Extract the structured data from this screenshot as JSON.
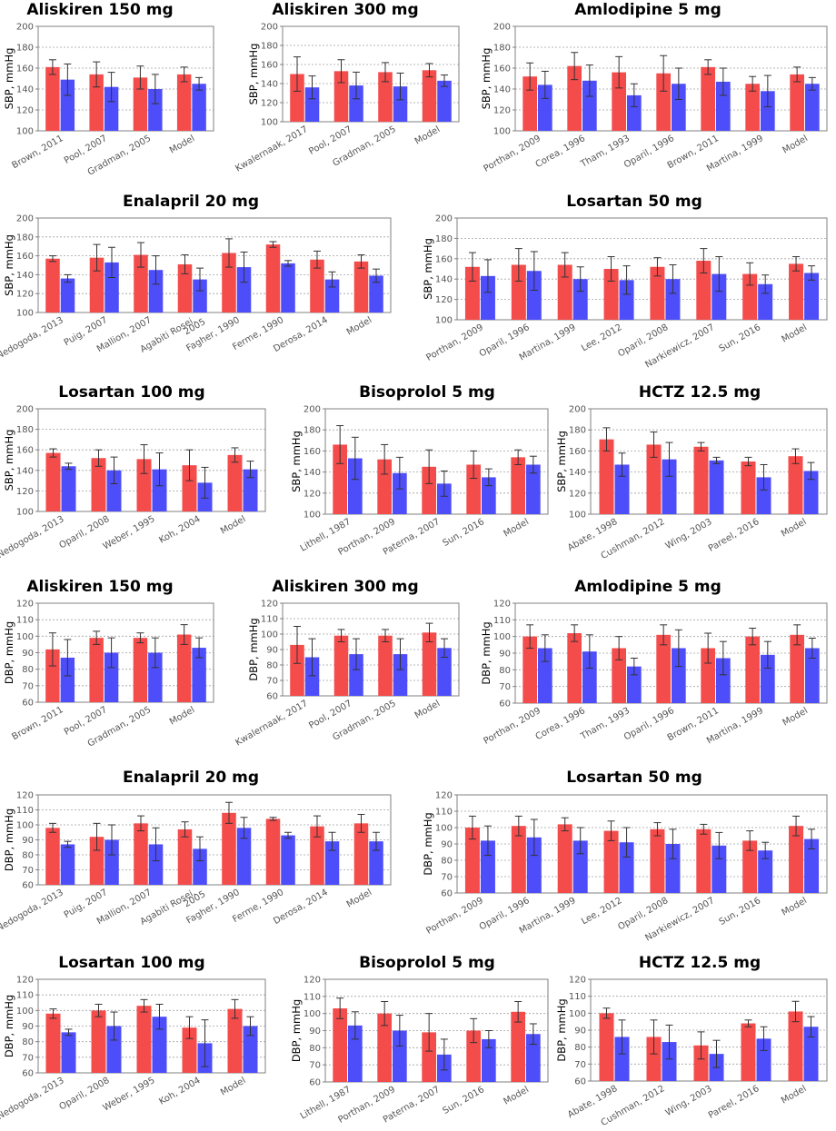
{
  "colors": {
    "treated": "#f44b4b",
    "control": "#4d4dfa",
    "axis": "#808080",
    "grid": "#a0a0a0"
  },
  "chart_data": [
    {
      "type": "bar",
      "title": "Aliskiren 150 mg",
      "ylabel": "SBP, mmHg",
      "ylim": [
        100,
        200
      ],
      "ticks": [
        100,
        120,
        140,
        160,
        180,
        200
      ],
      "categories": [
        "Brown, 2011",
        "Pool, 2007",
        "Gradman, 2005",
        "Model"
      ],
      "series": [
        {
          "name": "red",
          "values": [
            161,
            154,
            151,
            154
          ],
          "err": [
            7,
            12,
            11,
            7
          ]
        },
        {
          "name": "blue",
          "values": [
            149,
            142,
            140,
            145
          ],
          "err": [
            15,
            14,
            14,
            6
          ]
        }
      ]
    },
    {
      "type": "bar",
      "title": "Aliskiren 300 mg",
      "ylabel": "SBP, mmHg",
      "ylim": [
        100,
        200
      ],
      "ticks": [
        100,
        120,
        140,
        160,
        180,
        200
      ],
      "categories": [
        "Kwalernaak, 2017",
        "Pool, 2007",
        "Gradman, 2005",
        "Model"
      ],
      "series": [
        {
          "name": "red",
          "values": [
            150,
            153,
            152,
            154
          ],
          "err": [
            18,
            12,
            10,
            7
          ]
        },
        {
          "name": "blue",
          "values": [
            136,
            138,
            137,
            143
          ],
          "err": [
            12,
            14,
            14,
            6
          ]
        }
      ]
    },
    {
      "type": "bar",
      "title": "Amlodipine 5 mg",
      "ylabel": "SBP, mmHg",
      "ylim": [
        100,
        200
      ],
      "ticks": [
        100,
        120,
        140,
        160,
        180,
        200
      ],
      "categories": [
        "Porthan, 2009",
        "Corea, 1996",
        "Tham, 1993",
        "Oparil, 1996",
        "Brown, 2011",
        "Martina, 1999",
        "Model"
      ],
      "series": [
        {
          "name": "red",
          "values": [
            152,
            162,
            156,
            155,
            161,
            145,
            154
          ],
          "err": [
            13,
            13,
            15,
            17,
            7,
            7,
            7
          ]
        },
        {
          "name": "blue",
          "values": [
            144,
            148,
            134,
            145,
            147,
            138,
            145
          ],
          "err": [
            13,
            15,
            11,
            15,
            13,
            15,
            6
          ]
        }
      ]
    },
    {
      "type": "bar",
      "title": "Enalapril 20 mg",
      "ylabel": "SBP, mmHg",
      "ylim": [
        100,
        200
      ],
      "ticks": [
        100,
        120,
        140,
        160,
        180,
        200
      ],
      "categories": [
        "Nedogoda, 2013",
        "Puig, 2007",
        "Mallion, 2007",
        "Agabiti Rosei, 2005",
        "Fagher, 1990",
        "Ferme, 1990",
        "Derosa, 2014",
        "Model"
      ],
      "series": [
        {
          "name": "red",
          "values": [
            157,
            158,
            161,
            151,
            163,
            172,
            156,
            154
          ],
          "err": [
            3,
            14,
            13,
            10,
            15,
            3,
            9,
            7
          ]
        },
        {
          "name": "blue",
          "values": [
            136,
            153,
            145,
            135,
            148,
            152,
            135,
            139
          ],
          "err": [
            4,
            16,
            15,
            12,
            16,
            3,
            8,
            7
          ]
        }
      ]
    },
    {
      "type": "bar",
      "title": "Losartan 50 mg",
      "ylabel": "SBP, mmHg",
      "ylim": [
        100,
        200
      ],
      "ticks": [
        100,
        120,
        140,
        160,
        180,
        200
      ],
      "categories": [
        "Porthan, 2009",
        "Oparil, 1996",
        "Martina, 1999",
        "Lee, 2012",
        "Oparil, 2008",
        "Narkiewicz, 2007",
        "Sun, 2016",
        "Model"
      ],
      "series": [
        {
          "name": "red",
          "values": [
            152,
            154,
            154,
            150,
            152,
            158,
            145,
            155
          ],
          "err": [
            14,
            16,
            12,
            12,
            9,
            12,
            11,
            7
          ]
        },
        {
          "name": "blue",
          "values": [
            143,
            148,
            140,
            139,
            140,
            145,
            135,
            146
          ],
          "err": [
            16,
            19,
            12,
            14,
            14,
            17,
            9,
            7
          ]
        }
      ]
    },
    {
      "type": "bar",
      "title": "Losartan 100 mg",
      "ylabel": "SBP, mmHg",
      "ylim": [
        100,
        200
      ],
      "ticks": [
        100,
        120,
        140,
        160,
        180,
        200
      ],
      "categories": [
        "Nedogoda, 2013",
        "Oparil, 2008",
        "Weber, 1995",
        "Koh, 2004",
        "Model"
      ],
      "series": [
        {
          "name": "red",
          "values": [
            157,
            152,
            151,
            145,
            155
          ],
          "err": [
            4,
            8,
            14,
            15,
            7
          ]
        },
        {
          "name": "blue",
          "values": [
            144,
            140,
            141,
            128,
            141
          ],
          "err": [
            3,
            13,
            16,
            15,
            8
          ]
        }
      ]
    },
    {
      "type": "bar",
      "title": "Bisoprolol 5 mg",
      "ylabel": "SBP, mmHg",
      "ylim": [
        100,
        200
      ],
      "ticks": [
        100,
        120,
        140,
        160,
        180,
        200
      ],
      "categories": [
        "Lithell, 1987",
        "Porthan, 2009",
        "Paterna, 2007",
        "Sun, 2016",
        "Model"
      ],
      "series": [
        {
          "name": "red",
          "values": [
            166,
            152,
            145,
            147,
            154
          ],
          "err": [
            18,
            14,
            16,
            13,
            7
          ]
        },
        {
          "name": "blue",
          "values": [
            153,
            139,
            129,
            135,
            147
          ],
          "err": [
            20,
            15,
            12,
            8,
            8
          ]
        }
      ]
    },
    {
      "type": "bar",
      "title": "HCTZ 12.5 mg",
      "ylabel": "SBP, mmHg",
      "ylim": [
        100,
        200
      ],
      "ticks": [
        100,
        120,
        140,
        160,
        180,
        200
      ],
      "categories": [
        "Abate, 1998",
        "Cushman, 2012",
        "Wing, 2003",
        "Pareel, 2016",
        "Model"
      ],
      "series": [
        {
          "name": "red",
          "values": [
            171,
            166,
            164,
            150,
            155
          ],
          "err": [
            11,
            12,
            4,
            4,
            7
          ]
        },
        {
          "name": "blue",
          "values": [
            147,
            152,
            151,
            135,
            141
          ],
          "err": [
            11,
            16,
            3,
            12,
            8
          ]
        }
      ]
    },
    {
      "type": "bar",
      "title": "Aliskiren 150 mg",
      "ylabel": "DBP, mmHg",
      "ylim": [
        60,
        120
      ],
      "ticks": [
        60,
        70,
        80,
        90,
        100,
        110,
        120
      ],
      "categories": [
        "Brown, 2011",
        "Pool, 2007",
        "Gradman, 2005",
        "Model"
      ],
      "series": [
        {
          "name": "red",
          "values": [
            92,
            99,
            99,
            101
          ],
          "err": [
            10,
            4,
            3,
            6
          ]
        },
        {
          "name": "blue",
          "values": [
            87,
            90,
            90,
            93
          ],
          "err": [
            11,
            9,
            9,
            6
          ]
        }
      ]
    },
    {
      "type": "bar",
      "title": "Aliskiren 300 mg",
      "ylabel": "DBP, mmHg",
      "ylim": [
        60,
        120
      ],
      "ticks": [
        60,
        70,
        80,
        90,
        100,
        110,
        120
      ],
      "categories": [
        "Kwalernaak, 2017",
        "Pool, 2007",
        "Gradman, 2005",
        "Model"
      ],
      "series": [
        {
          "name": "red",
          "values": [
            93,
            99,
            99,
            101
          ],
          "err": [
            12,
            4,
            4,
            6
          ]
        },
        {
          "name": "blue",
          "values": [
            85,
            87,
            87,
            91
          ],
          "err": [
            12,
            10,
            10,
            6
          ]
        }
      ]
    },
    {
      "type": "bar",
      "title": "Amlodipine 5 mg",
      "ylabel": "DBP, mmHg",
      "ylim": [
        60,
        120
      ],
      "ticks": [
        60,
        70,
        80,
        90,
        100,
        110,
        120
      ],
      "categories": [
        "Porthan, 2009",
        "Corea, 1996",
        "Tham, 1993",
        "Oparil, 1996",
        "Brown, 2011",
        "Martina, 1999",
        "Model"
      ],
      "series": [
        {
          "name": "red",
          "values": [
            100,
            102,
            93,
            101,
            93,
            100,
            101
          ],
          "err": [
            7,
            5,
            7,
            6,
            9,
            5,
            6
          ]
        },
        {
          "name": "blue",
          "values": [
            93,
            91,
            82,
            93,
            87,
            89,
            93
          ],
          "err": [
            8,
            10,
            5,
            11,
            10,
            8,
            6
          ]
        }
      ]
    },
    {
      "type": "bar",
      "title": "Enalapril 20 mg",
      "ylabel": "DBP, mmHg",
      "ylim": [
        60,
        120
      ],
      "ticks": [
        60,
        70,
        80,
        90,
        100,
        110,
        120
      ],
      "categories": [
        "Nedogoda, 2013",
        "Puig, 2007",
        "Mallion, 2007",
        "Agabiti Rosei, 2005",
        "Fagher, 1990",
        "Ferme, 1990",
        "Derosa, 2014",
        "Model"
      ],
      "series": [
        {
          "name": "red",
          "values": [
            98,
            92,
            101,
            97,
            108,
            104,
            99,
            101
          ],
          "err": [
            3,
            9,
            5,
            5,
            7,
            1,
            7,
            6
          ]
        },
        {
          "name": "blue",
          "values": [
            87,
            90,
            87,
            84,
            98,
            93,
            89,
            89
          ],
          "err": [
            2,
            10,
            11,
            8,
            7,
            2,
            6,
            6
          ]
        }
      ]
    },
    {
      "type": "bar",
      "title": "Losartan 50 mg",
      "ylabel": "DBP, mmHg",
      "ylim": [
        60,
        120
      ],
      "ticks": [
        60,
        70,
        80,
        90,
        100,
        110,
        120
      ],
      "categories": [
        "Porthan, 2009",
        "Oparil, 1996",
        "Martina, 1999",
        "Lee, 2012",
        "Oparil, 2008",
        "Narkiewicz, 2007",
        "Sun, 2016",
        "Model"
      ],
      "series": [
        {
          "name": "red",
          "values": [
            100,
            101,
            102,
            98,
            99,
            99,
            92,
            101
          ],
          "err": [
            7,
            6,
            4,
            6,
            4,
            3,
            6,
            6
          ]
        },
        {
          "name": "blue",
          "values": [
            92,
            94,
            92,
            91,
            90,
            89,
            86,
            93
          ],
          "err": [
            9,
            11,
            8,
            9,
            9,
            8,
            5,
            6
          ]
        }
      ]
    },
    {
      "type": "bar",
      "title": "Losartan 100 mg",
      "ylabel": "DBP, mmHg",
      "ylim": [
        60,
        120
      ],
      "ticks": [
        60,
        70,
        80,
        90,
        100,
        110,
        120
      ],
      "categories": [
        "Nedogoda, 2013",
        "Oparil, 2008",
        "Weber, 1995",
        "Koh, 2004",
        "Model"
      ],
      "series": [
        {
          "name": "red",
          "values": [
            98,
            100,
            103,
            89,
            101
          ],
          "err": [
            3,
            4,
            4,
            7,
            6
          ]
        },
        {
          "name": "blue",
          "values": [
            86,
            90,
            96,
            79,
            90
          ],
          "err": [
            2,
            9,
            8,
            15,
            6
          ]
        }
      ]
    },
    {
      "type": "bar",
      "title": "Bisoprolol 5 mg",
      "ylabel": "DBP, mmHg",
      "ylim": [
        60,
        120
      ],
      "ticks": [
        60,
        70,
        80,
        90,
        100,
        110,
        120
      ],
      "categories": [
        "Lithell, 1987",
        "Porthan, 2009",
        "Paterna, 2007",
        "Sun, 2016",
        "Model"
      ],
      "series": [
        {
          "name": "red",
          "values": [
            103,
            100,
            89,
            90,
            101
          ],
          "err": [
            6,
            7,
            11,
            7,
            6
          ]
        },
        {
          "name": "blue",
          "values": [
            93,
            90,
            76,
            85,
            88
          ],
          "err": [
            8,
            9,
            9,
            5,
            6
          ]
        }
      ]
    },
    {
      "type": "bar",
      "title": "HCTZ 12.5 mg",
      "ylabel": "DBP, mmHg",
      "ylim": [
        60,
        120
      ],
      "ticks": [
        60,
        70,
        80,
        90,
        100,
        110,
        120
      ],
      "categories": [
        "Abate, 1998",
        "Cushman, 2012",
        "Wing, 2003",
        "Pareel, 2016",
        "Model"
      ],
      "series": [
        {
          "name": "red",
          "values": [
            100,
            86,
            81,
            94,
            101
          ],
          "err": [
            3,
            10,
            8,
            2,
            6
          ]
        },
        {
          "name": "blue",
          "values": [
            86,
            83,
            76,
            85,
            92
          ],
          "err": [
            10,
            10,
            8,
            7,
            6
          ]
        }
      ]
    }
  ]
}
